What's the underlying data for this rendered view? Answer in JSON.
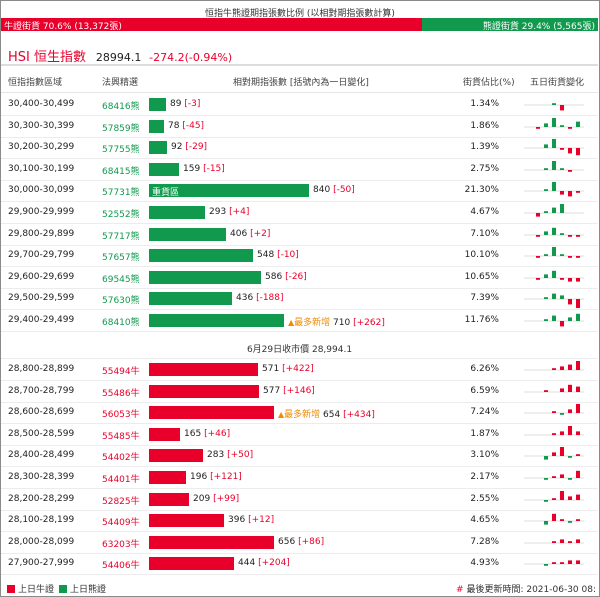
{
  "title": "恒指牛熊證期指張數比例 (以相對期指張數計算)",
  "ratio": {
    "bull_label": "牛證街貨 70.6% (13,372張)",
    "bear_label": "熊證街貨 29.4% (5,565張)",
    "bull_fraction": 0.706,
    "colors": {
      "bull": "#e8002b",
      "bear": "#119a4e"
    }
  },
  "index": {
    "name": "HSI 恒生指數",
    "price": "28994.1",
    "change": "-274.2(-0.94%)"
  },
  "headers": {
    "range": "恒指指數區域",
    "code": "法興精選",
    "contracts": "相對期指張數 [括號內為一日變化]",
    "outstanding": "街貨佔比(%)",
    "five_day": "五日街貨變化"
  },
  "bear_rows": [
    {
      "range": "30,400-30,499",
      "code": "68416熊",
      "count": "89",
      "change": "[-3]",
      "pct": "1.34%",
      "spark": [
        0,
        0,
        0,
        1,
        -3
      ]
    },
    {
      "range": "30,300-30,399",
      "code": "57859熊",
      "count": "78",
      "change": "[-45]",
      "pct": "1.86%",
      "spark": [
        0,
        -1,
        2,
        5,
        1,
        -1,
        3
      ]
    },
    {
      "range": "30,200-30,299",
      "code": "57755熊",
      "count": "92",
      "change": "[-29]",
      "pct": "1.39%",
      "spark": [
        0,
        0,
        2,
        5,
        -1,
        -3,
        -4
      ]
    },
    {
      "range": "30,100-30,199",
      "code": "68415熊",
      "count": "159",
      "change": "[-15]",
      "pct": "2.75%",
      "spark": [
        0,
        0,
        1,
        5,
        1,
        -1,
        0
      ]
    },
    {
      "range": "30,000-30,099",
      "code": "57731熊",
      "count": "840",
      "change": "[-50]",
      "pct": "21.30%",
      "label_in_bar": "重貨區",
      "spark": [
        0,
        0,
        1,
        5,
        -2,
        -3,
        -1
      ]
    },
    {
      "range": "29,900-29,999",
      "code": "52552熊",
      "count": "293",
      "change": "[+4]",
      "pct": "4.67%",
      "spark": [
        0,
        -2,
        1,
        3,
        5,
        0,
        0
      ]
    },
    {
      "range": "29,800-29,899",
      "code": "57717熊",
      "count": "406",
      "change": "[+2]",
      "pct": "7.10%",
      "spark": [
        0,
        -1,
        2,
        4,
        1,
        -1,
        -1
      ]
    },
    {
      "range": "29,700-29,799",
      "code": "57657熊",
      "count": "548",
      "change": "[-10]",
      "pct": "10.10%",
      "spark": [
        0,
        -1,
        1,
        5,
        1,
        -1,
        -1
      ]
    },
    {
      "range": "29,600-29,699",
      "code": "69545熊",
      "count": "586",
      "change": "[-26]",
      "pct": "10.65%",
      "spark": [
        0,
        -1,
        2,
        4,
        -1,
        -2,
        -2
      ]
    },
    {
      "range": "29,500-29,599",
      "code": "57630熊",
      "count": "436",
      "change": "[-188]",
      "pct": "7.39%",
      "spark": [
        0,
        0,
        1,
        3,
        2,
        -3,
        -5
      ]
    },
    {
      "range": "29,400-29,499",
      "code": "68410熊",
      "count": "710",
      "change": "[+262]",
      "pct": "11.76%",
      "new_tag": "最多新增",
      "spark": [
        0,
        0,
        1,
        3,
        -3,
        2,
        4
      ]
    }
  ],
  "close_line": "6月29日收市價 28,994.1",
  "bull_rows": [
    {
      "range": "28,800-28,899",
      "code": "55494牛",
      "count": "571",
      "change": "[+422]",
      "pct": "6.26%",
      "spark": [
        0,
        0,
        0,
        1,
        2,
        3,
        5
      ]
    },
    {
      "range": "28,700-28,799",
      "code": "55486牛",
      "count": "577",
      "change": "[+146]",
      "pct": "6.59%",
      "spark": [
        0,
        0,
        1,
        0,
        2,
        4,
        3
      ]
    },
    {
      "range": "28,600-28,699",
      "code": "56053牛",
      "count": "654",
      "change": "[+434]",
      "pct": "7.24%",
      "new_tag": "最多新增",
      "spark": [
        0,
        0,
        0,
        1,
        -1,
        2,
        5
      ]
    },
    {
      "range": "28,500-28,599",
      "code": "55485牛",
      "count": "165",
      "change": "[+46]",
      "pct": "1.87%",
      "spark": [
        0,
        0,
        0,
        1,
        2,
        5,
        2
      ]
    },
    {
      "range": "28,400-28,499",
      "code": "54402牛",
      "count": "283",
      "change": "[+50]",
      "pct": "3.10%",
      "spark": [
        0,
        0,
        -2,
        2,
        5,
        -1,
        1
      ]
    },
    {
      "range": "28,300-28,399",
      "code": "54401牛",
      "count": "196",
      "change": "[+121]",
      "pct": "2.17%",
      "spark": [
        0,
        0,
        -1,
        1,
        2,
        -1,
        4
      ]
    },
    {
      "range": "28,200-28,299",
      "code": "52825牛",
      "count": "209",
      "change": "[+99]",
      "pct": "2.55%",
      "spark": [
        0,
        0,
        -1,
        1,
        5,
        2,
        3
      ]
    },
    {
      "range": "28,100-28,199",
      "code": "54409牛",
      "count": "396",
      "change": "[+12]",
      "pct": "4.65%",
      "spark": [
        0,
        0,
        -2,
        4,
        1,
        -1,
        1
      ]
    },
    {
      "range": "28,000-28,099",
      "code": "63203牛",
      "count": "656",
      "change": "[+86]",
      "pct": "7.28%",
      "spark": [
        0,
        0,
        0,
        1,
        2,
        1,
        2
      ]
    },
    {
      "range": "27,900-27,999",
      "code": "54406牛",
      "count": "444",
      "change": "[+204]",
      "pct": "4.93%",
      "spark": [
        0,
        0,
        -1,
        1,
        1,
        2,
        2
      ]
    }
  ],
  "footer": {
    "legend_bull": "上日牛證",
    "legend_bear": "上日熊證",
    "updated_hash": "#",
    "updated": "最後更新時間: 2021-06-30 08:"
  }
}
